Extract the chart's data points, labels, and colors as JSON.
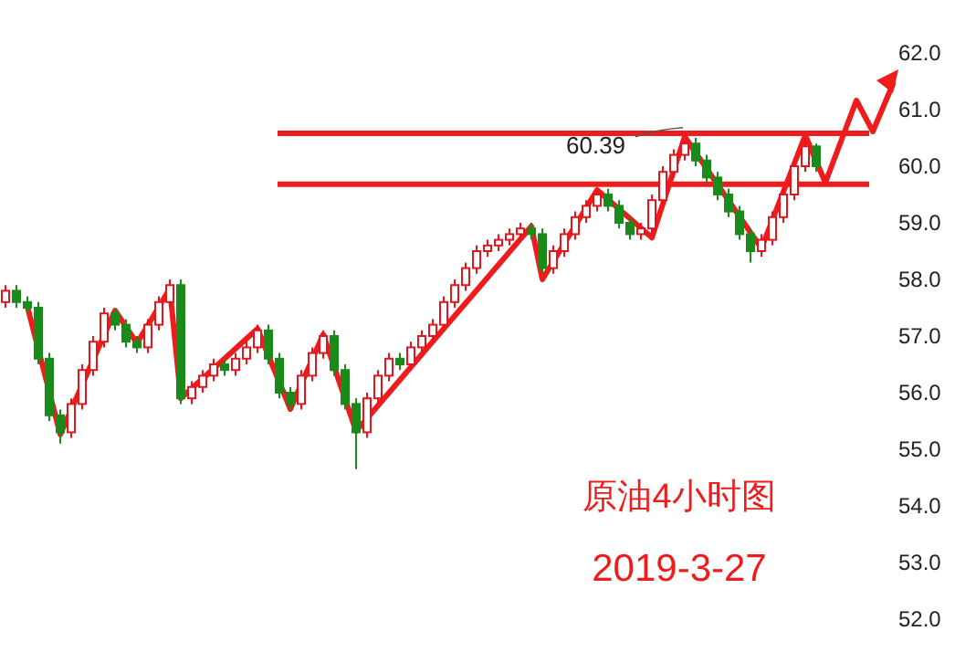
{
  "chart_data": {
    "type": "candlestick",
    "categories": [
      null,
      null,
      null,
      null,
      null,
      null,
      null,
      null,
      null,
      null,
      null,
      null,
      null,
      null,
      null,
      null,
      null,
      null,
      null,
      null,
      null,
      null,
      null,
      null,
      null,
      null,
      null,
      null,
      null,
      null,
      null,
      null,
      null,
      null,
      null,
      null,
      null,
      null,
      null,
      null,
      null,
      null,
      null,
      null,
      null,
      null,
      null,
      null,
      null,
      null,
      null,
      null,
      null,
      null,
      null,
      null,
      null,
      null,
      null,
      null,
      null,
      null,
      null,
      null,
      null,
      null,
      null,
      null,
      null,
      null,
      null,
      null,
      null,
      null,
      null
    ],
    "ohlc": [
      [
        57.6,
        57.9,
        57.5,
        57.8
      ],
      [
        57.8,
        57.9,
        57.5,
        57.6
      ],
      [
        57.6,
        57.7,
        57.4,
        57.5
      ],
      [
        57.5,
        57.6,
        56.5,
        56.6
      ],
      [
        56.6,
        56.7,
        55.5,
        55.6
      ],
      [
        55.6,
        55.7,
        55.1,
        55.3
      ],
      [
        55.3,
        55.9,
        55.2,
        55.8
      ],
      [
        55.8,
        56.5,
        55.7,
        56.4
      ],
      [
        56.4,
        57.0,
        56.3,
        56.9
      ],
      [
        56.9,
        57.5,
        56.8,
        57.4
      ],
      [
        57.4,
        57.5,
        57.1,
        57.2
      ],
      [
        57.2,
        57.3,
        56.8,
        56.9
      ],
      [
        56.9,
        57.0,
        56.7,
        56.8
      ],
      [
        56.8,
        57.3,
        56.7,
        57.2
      ],
      [
        57.2,
        57.7,
        57.1,
        57.6
      ],
      [
        57.6,
        58.0,
        57.5,
        57.9
      ],
      [
        57.9,
        58.0,
        55.8,
        55.9
      ],
      [
        55.9,
        56.2,
        55.8,
        56.1
      ],
      [
        56.1,
        56.4,
        56.0,
        56.3
      ],
      [
        56.3,
        56.6,
        56.2,
        56.5
      ],
      [
        56.5,
        56.6,
        56.3,
        56.4
      ],
      [
        56.4,
        56.7,
        56.3,
        56.6
      ],
      [
        56.6,
        56.9,
        56.5,
        56.8
      ],
      [
        56.8,
        57.2,
        56.7,
        57.1
      ],
      [
        57.1,
        57.2,
        56.5,
        56.6
      ],
      [
        56.6,
        56.7,
        55.9,
        56.0
      ],
      [
        56.0,
        56.1,
        55.7,
        55.8
      ],
      [
        55.8,
        56.4,
        55.7,
        56.3
      ],
      [
        56.3,
        56.8,
        56.2,
        56.7
      ],
      [
        56.7,
        57.1,
        56.6,
        57.0
      ],
      [
        57.0,
        57.1,
        56.3,
        56.4
      ],
      [
        56.4,
        56.5,
        55.7,
        55.8
      ],
      [
        55.8,
        55.9,
        54.65,
        55.3
      ],
      [
        55.3,
        56.0,
        55.2,
        55.9
      ],
      [
        55.9,
        56.4,
        55.8,
        56.3
      ],
      [
        56.3,
        56.7,
        56.2,
        56.6
      ],
      [
        56.6,
        56.7,
        56.4,
        56.5
      ],
      [
        56.5,
        56.9,
        56.4,
        56.8
      ],
      [
        56.8,
        57.1,
        56.7,
        57.0
      ],
      [
        57.0,
        57.3,
        56.9,
        57.2
      ],
      [
        57.2,
        57.7,
        57.1,
        57.6
      ],
      [
        57.6,
        58.0,
        57.5,
        57.9
      ],
      [
        57.9,
        58.3,
        57.8,
        58.2
      ],
      [
        58.2,
        58.6,
        58.1,
        58.5
      ],
      [
        58.5,
        58.7,
        58.4,
        58.6
      ],
      [
        58.6,
        58.8,
        58.5,
        58.7
      ],
      [
        58.7,
        58.9,
        58.6,
        58.8
      ],
      [
        58.8,
        59.0,
        58.7,
        58.9
      ],
      [
        58.9,
        59.0,
        58.7,
        58.8
      ],
      [
        58.8,
        58.9,
        58.1,
        58.2
      ],
      [
        58.2,
        58.6,
        58.1,
        58.5
      ],
      [
        58.5,
        58.9,
        58.4,
        58.8
      ],
      [
        58.8,
        59.2,
        58.7,
        59.1
      ],
      [
        59.1,
        59.4,
        59.0,
        59.3
      ],
      [
        59.3,
        59.6,
        59.2,
        59.5
      ],
      [
        59.5,
        59.6,
        59.2,
        59.3
      ],
      [
        59.3,
        59.4,
        58.9,
        59.0
      ],
      [
        59.0,
        59.1,
        58.7,
        58.8
      ],
      [
        58.8,
        59.0,
        58.7,
        58.9
      ],
      [
        58.9,
        59.5,
        58.8,
        59.4
      ],
      [
        59.4,
        60.0,
        59.3,
        59.9
      ],
      [
        59.9,
        60.3,
        59.8,
        60.2
      ],
      [
        60.2,
        60.45,
        60.1,
        60.4
      ],
      [
        60.4,
        60.5,
        60.0,
        60.1
      ],
      [
        60.1,
        60.2,
        59.7,
        59.8
      ],
      [
        59.8,
        59.9,
        59.4,
        59.5
      ],
      [
        59.5,
        59.6,
        59.1,
        59.2
      ],
      [
        59.2,
        59.3,
        58.7,
        58.8
      ],
      [
        58.8,
        58.9,
        58.3,
        58.5
      ],
      [
        58.5,
        58.8,
        58.4,
        58.7
      ],
      [
        58.7,
        59.2,
        58.6,
        59.1
      ],
      [
        59.1,
        59.6,
        59.0,
        59.5
      ],
      [
        59.5,
        60.1,
        59.4,
        60.0
      ],
      [
        60.0,
        60.5,
        59.9,
        60.35
      ],
      [
        60.35,
        60.4,
        59.9,
        60.0
      ]
    ],
    "series": [
      {
        "type": "line",
        "color": "#ee1c1c",
        "values": [
          null,
          null,
          57.52,
          null,
          null,
          55.26,
          null,
          null,
          null,
          null,
          57.45,
          null,
          56.87,
          null,
          null,
          57.84,
          55.9,
          null,
          null,
          null,
          null,
          null,
          null,
          57.13,
          null,
          null,
          55.71,
          null,
          null,
          57.03,
          null,
          null,
          55.32,
          null,
          null,
          null,
          null,
          null,
          null,
          null,
          null,
          null,
          null,
          null,
          null,
          null,
          null,
          null,
          58.94,
          58.0,
          null,
          null,
          null,
          null,
          59.58,
          null,
          null,
          null,
          null,
          58.74,
          null,
          null,
          60.52,
          null,
          null,
          null,
          null,
          null,
          null,
          58.55,
          null,
          null,
          null,
          60.55,
          null
        ]
      }
    ],
    "ylim": [
      52,
      62
    ],
    "yticks": [
      {
        "value": 52,
        "label": "52.0"
      },
      {
        "value": 53,
        "label": "53.0"
      },
      {
        "value": 54,
        "label": "54.0"
      },
      {
        "value": 55,
        "label": "55.0"
      },
      {
        "value": 56,
        "label": "56.0"
      },
      {
        "value": 57,
        "label": "57.0"
      },
      {
        "value": 58,
        "label": "58.0"
      },
      {
        "value": 59,
        "label": "59.0"
      },
      {
        "value": 60,
        "label": "60.0"
      },
      {
        "value": 61,
        "label": "61.0"
      },
      {
        "value": 62,
        "label": "62.0"
      }
    ],
    "tick_labels": "y",
    "ref_lines": [
      {
        "axis": "y",
        "value": 60.58,
        "color": "#ee1c1c"
      },
      {
        "axis": "y",
        "value": 59.68,
        "color": "#ee1c1c"
      }
    ],
    "annotations": [
      {
        "text": "60.39",
        "y": 60.39
      },
      "原油4小时图",
      "2019-3-27"
    ]
  }
}
